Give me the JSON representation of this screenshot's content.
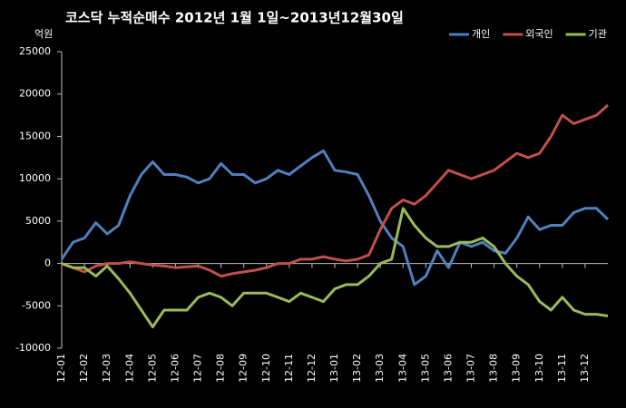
{
  "chart_data": {
    "type": "line",
    "title": "코스닥 누적순매수 2012년 1월 1일~2013년12월30일",
    "y_label": "억원",
    "categories": [
      "12-01",
      null,
      "12-02",
      null,
      "12-03",
      null,
      "12-04",
      null,
      "12-05",
      null,
      "12-06",
      null,
      "12-07",
      null,
      "12-08",
      null,
      "12-09",
      null,
      "12-10",
      null,
      "12-11",
      null,
      "12-12",
      null,
      "13-01",
      null,
      "13-02",
      null,
      "13-03",
      null,
      "13-04",
      null,
      "13-05",
      null,
      "13-06",
      null,
      "13-07",
      null,
      "13-08",
      null,
      "13-09",
      null,
      "13-10",
      null,
      "13-11",
      null,
      "13-12",
      null,
      null
    ],
    "series": [
      {
        "name": "개인",
        "color": "#4f81bd",
        "values": [
          500,
          2500,
          3000,
          4800,
          3500,
          4500,
          8000,
          10500,
          12000,
          10500,
          10500,
          10200,
          9500,
          10000,
          11800,
          10500,
          10500,
          9500,
          10000,
          11000,
          10500,
          11500,
          12500,
          13300,
          11000,
          10800,
          10500,
          8000,
          5000,
          3000,
          2000,
          -2500,
          -1500,
          1500,
          -500,
          2500,
          2000,
          2500,
          1500,
          1200,
          3000,
          5500,
          4000,
          4500,
          4500,
          6000,
          6500,
          6500,
          5200
        ]
      },
      {
        "name": "외국인",
        "color": "#c0504d",
        "values": [
          0,
          -500,
          -1000,
          -300,
          0,
          0,
          200,
          0,
          -200,
          -300,
          -500,
          -400,
          -300,
          -800,
          -1500,
          -1200,
          -1000,
          -800,
          -500,
          0,
          0,
          500,
          500,
          800,
          500,
          300,
          500,
          1000,
          4000,
          6500,
          7500,
          7000,
          8000,
          9500,
          11000,
          10500,
          10000,
          10500,
          11000,
          12000,
          13000,
          12500,
          13000,
          15000,
          17500,
          16500,
          17000,
          17500,
          18700
        ]
      },
      {
        "name": "기관",
        "color": "#9bbb59",
        "values": [
          0,
          -500,
          -500,
          -1500,
          -300,
          -1800,
          -3500,
          -5500,
          -7500,
          -5500,
          -5500,
          -5500,
          -4000,
          -3500,
          -4000,
          -5000,
          -3500,
          -3500,
          -3500,
          -4000,
          -4500,
          -3500,
          -4000,
          -4500,
          -3000,
          -2500,
          -2500,
          -1500,
          0,
          500,
          6500,
          4500,
          3000,
          2000,
          2000,
          2500,
          2500,
          3000,
          2000,
          0,
          -1500,
          -2500,
          -4500,
          -5500,
          -4000,
          -5500,
          -6000,
          -6000,
          -6200
        ]
      }
    ],
    "ylim": [
      -10000,
      25000
    ],
    "yticks": [
      -10000,
      -5000,
      0,
      5000,
      10000,
      15000,
      20000,
      25000
    ],
    "grid": false,
    "legend": "top-right"
  }
}
